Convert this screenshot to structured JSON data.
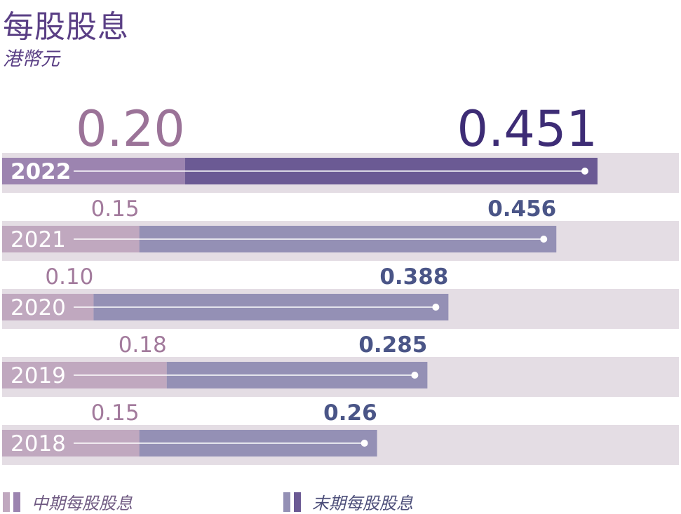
{
  "title": "每股股息",
  "subtitle": "港幣元",
  "legend": {
    "interim": "中期每股股息",
    "final": "末期每股股息"
  },
  "colors": {
    "interim": "#c0a8bf",
    "final": "#9490b5",
    "track": "#e4dde4",
    "interim_highlight": "#9c84b0",
    "final_highlight": "#6b5a94",
    "interim_label": "#a27a9c",
    "final_label": "#4a5587",
    "interim_label_highlight": "#9b7398",
    "final_label_highlight": "#3d2c75"
  },
  "chart_data": {
    "type": "bar",
    "orientation": "horizontal",
    "stacked": true,
    "categories": [
      "2022",
      "2021",
      "2020",
      "2019",
      "2018"
    ],
    "series": [
      {
        "name": "中期每股股息",
        "values": [
          0.2,
          0.15,
          0.1,
          0.18,
          0.15
        ],
        "labels": [
          "0.20",
          "0.15",
          "0.10",
          "0.18",
          "0.15"
        ]
      },
      {
        "name": "末期每股股息",
        "values": [
          0.451,
          0.456,
          0.388,
          0.285,
          0.26
        ],
        "labels": [
          "0.451",
          "0.456",
          "0.388",
          "0.285",
          "0.26"
        ]
      }
    ],
    "highlight_category": "2022",
    "xlim": [
      0,
      0.74
    ],
    "legend_position": "bottom"
  }
}
